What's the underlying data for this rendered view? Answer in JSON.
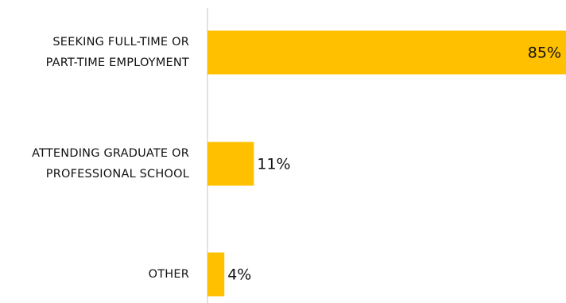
{
  "chart_data": {
    "type": "bar",
    "orientation": "horizontal",
    "categories": [
      [
        "SEEKING FULL-TIME OR",
        "PART-TIME EMPLOYMENT"
      ],
      [
        "ATTENDING GRADUATE OR",
        "PROFESSIONAL SCHOOL"
      ],
      [
        "OTHER"
      ]
    ],
    "values": [
      85,
      11,
      4
    ],
    "value_labels": [
      "85%",
      "11%",
      "4%"
    ],
    "xlim": [
      0,
      85
    ],
    "grid": false,
    "legend": "none"
  },
  "colors": {
    "bar": "#FFC000",
    "axis": "#D9D9D9",
    "text": "#111111"
  }
}
